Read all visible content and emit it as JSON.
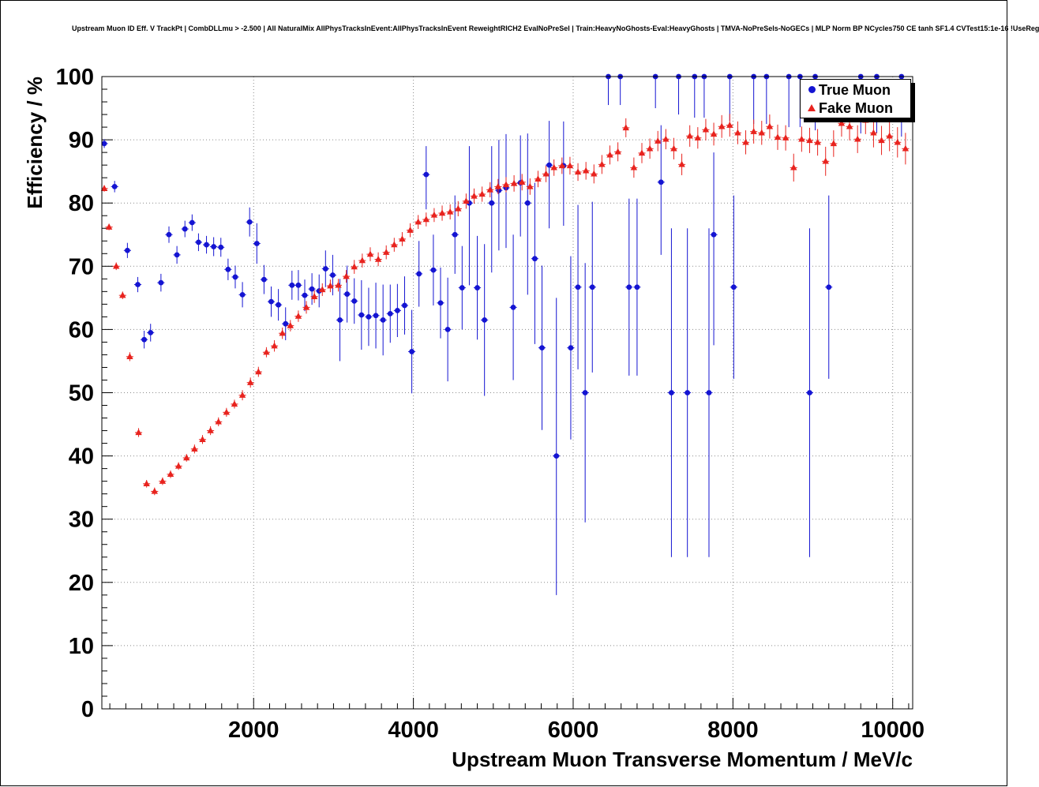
{
  "chart_data": {
    "type": "scatter",
    "title": "Upstream Muon ID Eff. V TrackPt | CombDLLmu > -2.500 | All NaturalMix AllPhysTracksInEvent:AllPhysTracksInEvent ReweightRICH2 EvalNoPreSel | Train:HeavyNoGhosts-Eval:HeavyGhosts | TMVA-NoPreSels-NoGECs | MLP Norm BP NCycles750 CE tanh SF1.4 CVTest15:1e-16 !UseReg",
    "xlabel": "Upstream Muon Transverse Momentum / MeV/c",
    "ylabel": "Efficiency / %",
    "xlim": [
      100,
      10250
    ],
    "ylim": [
      0,
      100
    ],
    "xticks": [
      2000,
      4000,
      6000,
      8000,
      10000
    ],
    "yticks": [
      0,
      10,
      20,
      30,
      40,
      50,
      60,
      70,
      80,
      90,
      100
    ],
    "grid": "dotted",
    "grid_color": "#8a8a8a",
    "frame_color": "#000000",
    "legend_position": "top-right",
    "x_bin_halfwidth": 45,
    "series": [
      {
        "name": "True Muon",
        "marker": "circle",
        "color": "#1414d2",
        "points": [
          [
            130,
            89.4,
            0.7,
            0.7
          ],
          [
            260,
            82.6,
            0.9,
            0.9
          ],
          [
            420,
            72.5,
            1.2,
            1.2
          ],
          [
            550,
            67.1,
            1.2,
            1.2
          ],
          [
            630,
            58.4,
            1.4,
            1.4
          ],
          [
            710,
            59.5,
            1.4,
            1.4
          ],
          [
            840,
            67.4,
            1.4,
            1.4
          ],
          [
            940,
            75.0,
            1.3,
            1.3
          ],
          [
            1040,
            71.8,
            1.4,
            1.4
          ],
          [
            1140,
            75.9,
            1.3,
            1.3
          ],
          [
            1230,
            76.9,
            1.3,
            1.3
          ],
          [
            1310,
            73.8,
            1.4,
            1.4
          ],
          [
            1410,
            73.4,
            1.4,
            1.4
          ],
          [
            1500,
            73.1,
            1.5,
            1.5
          ],
          [
            1590,
            73.0,
            1.5,
            1.5
          ],
          [
            1680,
            69.5,
            1.7,
            1.7
          ],
          [
            1770,
            68.3,
            1.8,
            1.8
          ],
          [
            1860,
            65.5,
            2.0,
            2.0
          ],
          [
            1950,
            77.0,
            2.3,
            2.3
          ],
          [
            2040,
            73.6,
            3.2,
            3.2
          ],
          [
            2130,
            67.9,
            2.3,
            2.3
          ],
          [
            2220,
            64.4,
            2.4,
            2.4
          ],
          [
            2310,
            63.9,
            2.5,
            2.5
          ],
          [
            2400,
            60.9,
            2.6,
            2.6
          ],
          [
            2480,
            67.0,
            2.3,
            2.3
          ],
          [
            2560,
            67.0,
            2.4,
            2.4
          ],
          [
            2640,
            65.4,
            2.5,
            2.5
          ],
          [
            2730,
            66.4,
            2.5,
            2.5
          ],
          [
            2820,
            66.1,
            2.6,
            2.6
          ],
          [
            2900,
            69.6,
            2.9,
            2.9
          ],
          [
            2990,
            68.6,
            3.2,
            3.2
          ],
          [
            3080,
            61.5,
            6.5,
            6.5
          ],
          [
            3170,
            65.6,
            4.5,
            4.5
          ],
          [
            3260,
            64.5,
            3.6,
            3.6
          ],
          [
            3350,
            62.3,
            5.5,
            5.5
          ],
          [
            3440,
            62.0,
            4.6,
            4.6
          ],
          [
            3530,
            62.2,
            5.2,
            5.2
          ],
          [
            3620,
            61.5,
            5.6,
            5.6
          ],
          [
            3710,
            62.5,
            4.6,
            4.6
          ],
          [
            3800,
            63.0,
            4.2,
            4.2
          ],
          [
            3890,
            63.8,
            4.6,
            4.6
          ],
          [
            3980,
            56.5,
            6.6,
            6.6
          ],
          [
            4070,
            68.8,
            5.2,
            5.2
          ],
          [
            4160,
            84.5,
            5.5,
            4.5
          ],
          [
            4250,
            69.4,
            5.6,
            5.6
          ],
          [
            4340,
            64.2,
            5.6,
            5.6
          ],
          [
            4430,
            60.0,
            8.2,
            8.2
          ],
          [
            4520,
            75.0,
            6.2,
            6.2
          ],
          [
            4610,
            66.6,
            6.6,
            6.6
          ],
          [
            4700,
            80.0,
            13.0,
            9.0
          ],
          [
            4800,
            66.6,
            8.2,
            8.2
          ],
          [
            4890,
            61.5,
            12.0,
            12.0
          ],
          [
            4980,
            80.0,
            11.0,
            9.0
          ],
          [
            5070,
            82.0,
            9.5,
            8.0
          ],
          [
            5160,
            82.4,
            9.5,
            8.5
          ],
          [
            5250,
            63.5,
            11.5,
            11.5
          ],
          [
            5340,
            83.2,
            8.5,
            7.5
          ],
          [
            5430,
            80.0,
            14.5,
            11.0
          ],
          [
            5520,
            71.2,
            13.5,
            12.0
          ],
          [
            5610,
            57.1,
            13.0,
            13.0
          ],
          [
            5700,
            86.0,
            10.0,
            7.0
          ],
          [
            5790,
            40.0,
            22.0,
            25.0
          ],
          [
            5880,
            85.9,
            9.5,
            7.0
          ],
          [
            5970,
            57.1,
            14.5,
            14.5
          ],
          [
            6060,
            66.7,
            13.0,
            13.0
          ],
          [
            6150,
            50.0,
            20.5,
            20.5
          ],
          [
            6240,
            66.7,
            13.5,
            13.5
          ],
          [
            6440,
            100,
            4.5,
            0
          ],
          [
            6590,
            100,
            4.5,
            0
          ],
          [
            6700,
            66.7,
            14.0,
            14.0
          ],
          [
            6800,
            66.7,
            14.0,
            14.0
          ],
          [
            7030,
            100,
            5.0,
            0
          ],
          [
            7100,
            83.3,
            11.5,
            9.0
          ],
          [
            7230,
            50.0,
            26.0,
            26.0
          ],
          [
            7320,
            100,
            6.0,
            0
          ],
          [
            7430,
            50.0,
            26.0,
            26.0
          ],
          [
            7520,
            100,
            6.5,
            0
          ],
          [
            7640,
            100,
            6.5,
            0
          ],
          [
            7700,
            50.0,
            26.0,
            26.0
          ],
          [
            7760,
            75.0,
            17.5,
            13.0
          ],
          [
            7960,
            100,
            7.0,
            0
          ],
          [
            8010,
            66.7,
            14.5,
            14.5
          ],
          [
            8260,
            100,
            7.5,
            0
          ],
          [
            8420,
            100,
            7.5,
            0
          ],
          [
            8700,
            100,
            8.0,
            0
          ],
          [
            8840,
            100,
            8.0,
            0
          ],
          [
            8960,
            50.0,
            26.0,
            26.0
          ],
          [
            9030,
            100,
            8.5,
            0
          ],
          [
            9200,
            66.7,
            14.5,
            14.5
          ],
          [
            9600,
            100,
            9.0,
            0
          ],
          [
            9800,
            100,
            9.0,
            0
          ],
          [
            10110,
            100,
            9.5,
            0
          ]
        ]
      },
      {
        "name": "Fake Muon",
        "marker": "triangle",
        "color": "#e8231e",
        "points": [
          [
            130,
            82.3,
            0.5
          ],
          [
            190,
            76.2,
            0.5
          ],
          [
            280,
            70.0,
            0.6
          ],
          [
            360,
            65.4,
            0.6
          ],
          [
            450,
            55.7,
            0.7
          ],
          [
            560,
            43.7,
            0.7
          ],
          [
            660,
            35.6,
            0.6
          ],
          [
            760,
            34.4,
            0.6
          ],
          [
            860,
            36.0,
            0.6
          ],
          [
            960,
            37.1,
            0.6
          ],
          [
            1060,
            38.4,
            0.6
          ],
          [
            1160,
            39.7,
            0.6
          ],
          [
            1260,
            41.1,
            0.7
          ],
          [
            1360,
            42.6,
            0.7
          ],
          [
            1460,
            44.0,
            0.7
          ],
          [
            1560,
            45.4,
            0.7
          ],
          [
            1660,
            46.9,
            0.7
          ],
          [
            1760,
            48.2,
            0.7
          ],
          [
            1860,
            49.6,
            0.8
          ],
          [
            1960,
            51.6,
            0.8
          ],
          [
            2060,
            53.3,
            0.8
          ],
          [
            2160,
            56.4,
            0.8
          ],
          [
            2260,
            57.4,
            0.9
          ],
          [
            2360,
            59.4,
            0.9
          ],
          [
            2460,
            60.6,
            0.9
          ],
          [
            2560,
            62.1,
            0.9
          ],
          [
            2660,
            63.5,
            1.0
          ],
          [
            2760,
            65.2,
            1.0
          ],
          [
            2860,
            66.3,
            1.0
          ],
          [
            2960,
            66.9,
            1.0
          ],
          [
            3060,
            67.0,
            1.0
          ],
          [
            3160,
            68.4,
            1.0
          ],
          [
            3260,
            69.9,
            1.1
          ],
          [
            3360,
            70.9,
            1.1
          ],
          [
            3460,
            71.9,
            1.1
          ],
          [
            3560,
            71.1,
            1.1
          ],
          [
            3660,
            72.2,
            1.1
          ],
          [
            3760,
            73.4,
            1.1
          ],
          [
            3860,
            74.3,
            1.1
          ],
          [
            3960,
            75.7,
            1.1
          ],
          [
            4060,
            77.0,
            1.1
          ],
          [
            4160,
            77.4,
            1.1
          ],
          [
            4260,
            78.1,
            1.1
          ],
          [
            4360,
            78.4,
            1.2
          ],
          [
            4460,
            78.6,
            1.2
          ],
          [
            4560,
            79.1,
            1.2
          ],
          [
            4660,
            80.3,
            1.2
          ],
          [
            4760,
            81.1,
            1.2
          ],
          [
            4860,
            81.4,
            1.2
          ],
          [
            4960,
            82.1,
            1.2
          ],
          [
            5060,
            82.6,
            1.2
          ],
          [
            5160,
            82.9,
            1.2
          ],
          [
            5260,
            83.1,
            1.3
          ],
          [
            5360,
            83.3,
            1.3
          ],
          [
            5460,
            82.6,
            1.3
          ],
          [
            5560,
            83.8,
            1.3
          ],
          [
            5660,
            84.6,
            1.3
          ],
          [
            5760,
            85.6,
            1.3
          ],
          [
            5860,
            85.9,
            1.3
          ],
          [
            5960,
            85.9,
            1.4
          ],
          [
            6060,
            84.9,
            1.4
          ],
          [
            6160,
            85.1,
            1.4
          ],
          [
            6260,
            84.6,
            1.5
          ],
          [
            6360,
            86.1,
            1.5
          ],
          [
            6460,
            87.6,
            1.5
          ],
          [
            6560,
            88.1,
            1.5
          ],
          [
            6660,
            91.9,
            1.5
          ],
          [
            6760,
            85.6,
            1.6
          ],
          [
            6860,
            87.9,
            1.6
          ],
          [
            6960,
            88.6,
            1.6
          ],
          [
            7060,
            89.8,
            1.6
          ],
          [
            7160,
            90.1,
            1.6
          ],
          [
            7260,
            88.6,
            1.7
          ],
          [
            7360,
            86.1,
            1.7
          ],
          [
            7460,
            90.6,
            1.7
          ],
          [
            7560,
            90.3,
            1.7
          ],
          [
            7660,
            91.6,
            1.7
          ],
          [
            7760,
            90.9,
            1.8
          ],
          [
            7860,
            92.1,
            1.8
          ],
          [
            7960,
            92.3,
            1.8
          ],
          [
            8060,
            91.1,
            1.8
          ],
          [
            8160,
            89.6,
            1.9
          ],
          [
            8260,
            91.3,
            1.9
          ],
          [
            8360,
            91.1,
            1.9
          ],
          [
            8460,
            92.1,
            1.9
          ],
          [
            8560,
            90.4,
            2.0
          ],
          [
            8660,
            90.3,
            2.0
          ],
          [
            8760,
            85.6,
            2.2
          ],
          [
            8860,
            90.1,
            2.0
          ],
          [
            8960,
            89.9,
            2.0
          ],
          [
            9060,
            89.6,
            2.1
          ],
          [
            9160,
            86.6,
            2.3
          ],
          [
            9260,
            89.4,
            2.1
          ],
          [
            9360,
            92.6,
            2.1
          ],
          [
            9460,
            92.1,
            2.2
          ],
          [
            9560,
            90.1,
            2.2
          ],
          [
            9660,
            93.1,
            2.2
          ],
          [
            9760,
            91.1,
            2.3
          ],
          [
            9860,
            89.9,
            2.3
          ],
          [
            9960,
            90.6,
            2.4
          ],
          [
            10060,
            89.6,
            2.4
          ],
          [
            10160,
            88.6,
            2.5
          ]
        ]
      }
    ]
  }
}
